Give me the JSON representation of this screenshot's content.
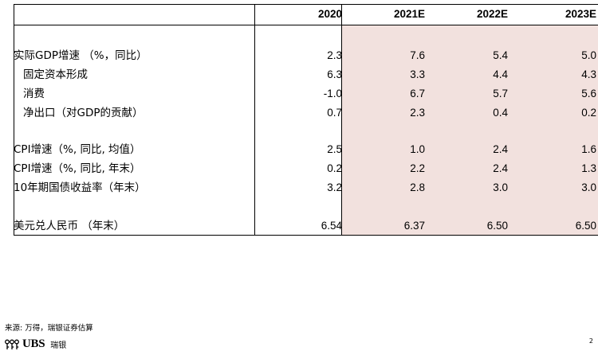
{
  "table": {
    "headers": [
      "2020",
      "2021E",
      "2022E",
      "2023E"
    ],
    "rows": [
      {
        "label": "实际GDP增速 （%，同比）",
        "values": [
          "2.3",
          "7.6",
          "5.4",
          "5.0"
        ]
      },
      {
        "label": "固定资本形成",
        "values": [
          "6.3",
          "3.3",
          "4.4",
          "4.3"
        ]
      },
      {
        "label": "消费",
        "values": [
          "-1.0",
          "6.7",
          "5.7",
          "5.6"
        ]
      },
      {
        "label": "净出口（对GDP的贡献）",
        "values": [
          "0.7",
          "2.3",
          "0.4",
          "0.2"
        ]
      },
      {
        "label": "CPI增速（%, 同比, 均值）",
        "values": [
          "2.5",
          "1.0",
          "2.4",
          "1.6"
        ]
      },
      {
        "label": "CPI增速（%, 同比, 年末）",
        "values": [
          "0.2",
          "2.2",
          "2.4",
          "1.3"
        ]
      },
      {
        "label": "10年期国债收益率（年末）",
        "values": [
          "3.2",
          "2.8",
          "3.0",
          "3.0"
        ]
      },
      {
        "label": "美元兑人民币 （年末）",
        "values": [
          "6.54",
          "6.37",
          "6.50",
          "6.50"
        ]
      }
    ]
  },
  "footer": {
    "source": "来源: 万得，瑞银证券估算",
    "logo_text": "UBS",
    "logo_cn": "瑞银",
    "page_number": "2"
  },
  "colors": {
    "forecast_shading": "#f2e1de",
    "rule": "#000000"
  },
  "icons": [
    "ubs-keys-logo-icon"
  ]
}
